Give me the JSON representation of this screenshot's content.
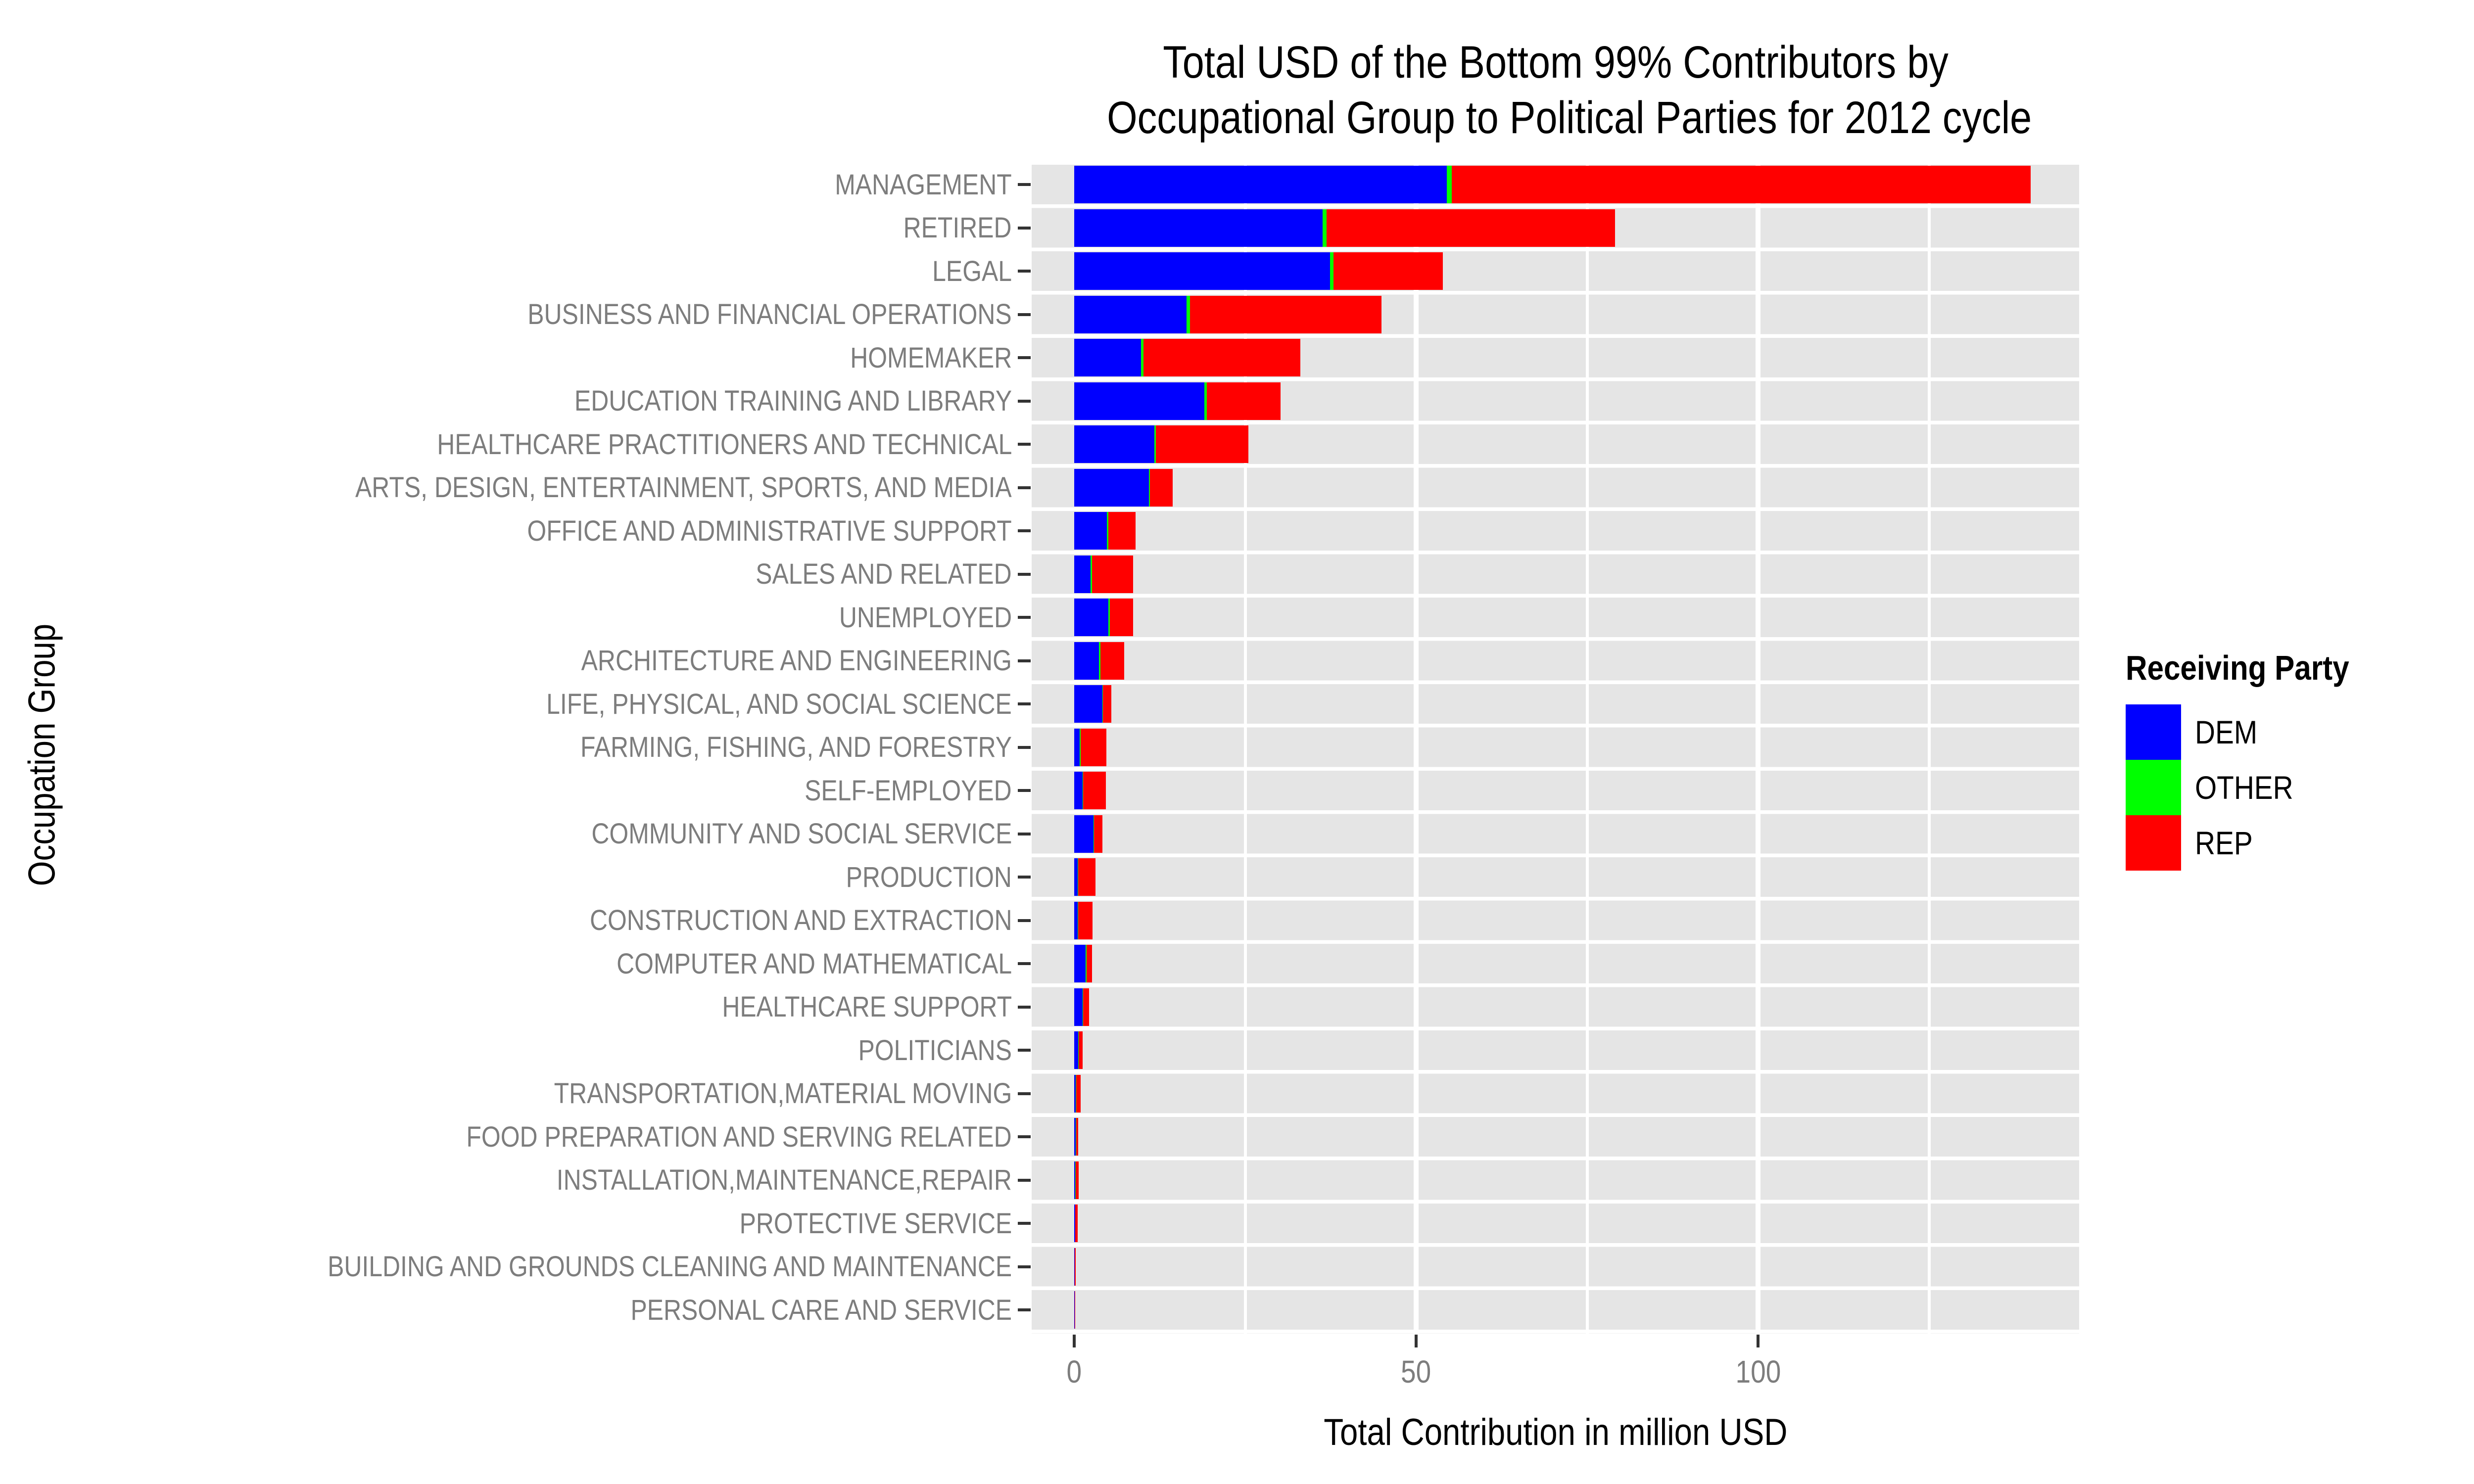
{
  "chart_data": {
    "type": "bar",
    "orientation": "horizontal",
    "stacked": true,
    "title_line1": "Total USD of the Bottom 99% Contributors by",
    "title_line2": "Occupational Group to Political Parties for 2012 cycle",
    "xlabel": "Total Contribution in million USD",
    "ylabel": "Occupation Group",
    "xlim": [
      0,
      147
    ],
    "x_ticks": [
      0,
      50,
      100
    ],
    "gridlines_minor": [
      25,
      75,
      125
    ],
    "gridlines_major": [
      50,
      100
    ],
    "grid": true,
    "legend_position": "right",
    "categories": [
      "MANAGEMENT",
      "RETIRED",
      "LEGAL",
      "BUSINESS AND FINANCIAL OPERATIONS",
      "HOMEMAKER",
      "EDUCATION TRAINING AND LIBRARY",
      "HEALTHCARE PRACTITIONERS AND TECHNICAL",
      "ARTS, DESIGN, ENTERTAINMENT, SPORTS, AND MEDIA",
      "OFFICE AND ADMINISTRATIVE SUPPORT",
      "SALES AND RELATED",
      "UNEMPLOYED",
      "ARCHITECTURE AND ENGINEERING",
      "LIFE, PHYSICAL, AND SOCIAL SCIENCE",
      "FARMING, FISHING, AND FORESTRY",
      "SELF-EMPLOYED",
      "COMMUNITY AND SOCIAL SERVICE",
      "PRODUCTION",
      "CONSTRUCTION AND EXTRACTION",
      "COMPUTER AND MATHEMATICAL",
      "HEALTHCARE SUPPORT",
      "POLITICIANS",
      "TRANSPORTATION,MATERIAL MOVING",
      "FOOD PREPARATION AND SERVING RELATED",
      "INSTALLATION,MAINTENANCE,REPAIR",
      "PROTECTIVE SERVICE",
      "BUILDING AND GROUNDS CLEANING AND MAINTENANCE",
      "PERSONAL CARE AND SERVICE"
    ],
    "series": [
      {
        "name": "DEM",
        "color": "#0000FF",
        "values": [
          54.5,
          36.3,
          37.4,
          16.4,
          9.8,
          19.0,
          11.7,
          10.9,
          4.8,
          2.4,
          5.0,
          3.6,
          4.1,
          0.8,
          1.2,
          2.8,
          0.5,
          0.5,
          1.7,
          1.25,
          0.6,
          0.25,
          0.25,
          0.17,
          0.13,
          0.08,
          0.05
        ]
      },
      {
        "name": "OTHER",
        "color": "#00FF00",
        "values": [
          0.7,
          0.6,
          0.5,
          0.5,
          0.3,
          0.4,
          0.25,
          0.2,
          0.2,
          0.2,
          0.2,
          0.2,
          0.1,
          0.15,
          0.1,
          0.1,
          0.1,
          0.05,
          0.1,
          0.05,
          0.02,
          0.02,
          0.02,
          0.02,
          0.02,
          0.01,
          0.01
        ]
      },
      {
        "name": "REP",
        "color": "#FF0000",
        "values": [
          84.7,
          42.2,
          16.0,
          28.0,
          23.0,
          10.8,
          13.5,
          3.3,
          4.0,
          6.0,
          3.4,
          3.5,
          1.2,
          3.75,
          3.3,
          1.2,
          2.5,
          2.15,
          0.8,
          0.9,
          0.6,
          0.66,
          0.33,
          0.46,
          0.33,
          0.13,
          0.09
        ]
      }
    ],
    "legend": {
      "title": "Receiving Party",
      "entries": [
        "DEM",
        "OTHER",
        "REP"
      ]
    },
    "colors": {
      "panel_background": "#E5E5E5",
      "gridline": "#FFFFFF",
      "axis_text": "#7d7d7d",
      "tick_mark": "#333333",
      "title_text": "#000000",
      "dem": "#0000FF",
      "other": "#00FF00",
      "rep": "#FF0000"
    }
  }
}
